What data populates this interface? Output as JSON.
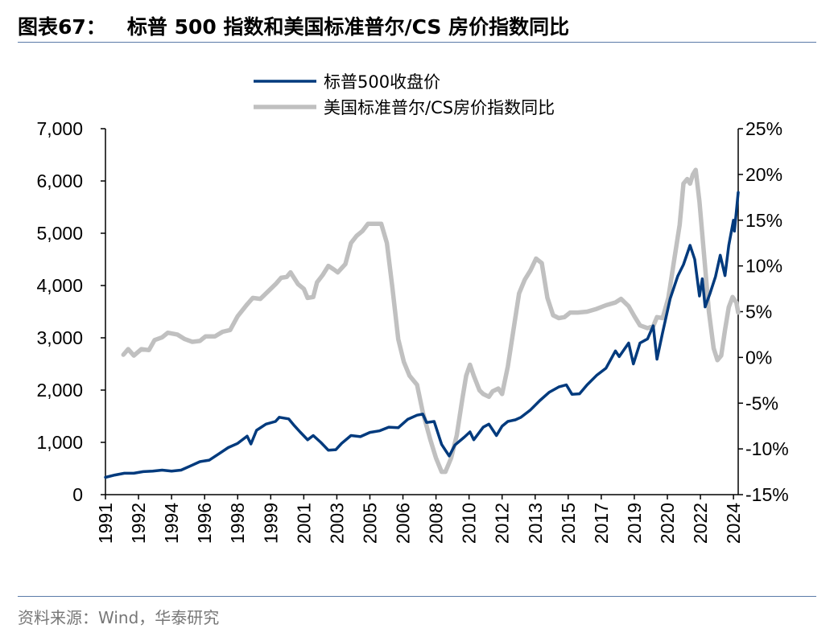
{
  "title": "图表67：   标普 500 指数和美国标准普尔/CS 房价指数同比",
  "source": "资料来源：Wind，华泰研究",
  "chart_data": {
    "type": "line",
    "title": "",
    "xlim": [
      1991,
      2024.5
    ],
    "x_tick_labels": [
      "1991",
      "1992",
      "1994",
      "1996",
      "1998",
      "1999",
      "2001",
      "2003",
      "2005",
      "2006",
      "2008",
      "2010",
      "2012",
      "2013",
      "2015",
      "2017",
      "2019",
      "2020",
      "2022",
      "2024"
    ],
    "x_tick_values": [
      1991,
      1992.75,
      1994.5,
      1996.25,
      1998,
      1999.75,
      2001.5,
      2003.25,
      2005,
      2006.75,
      2008.5,
      2010.25,
      2012,
      2013.75,
      2015.5,
      2017.25,
      2019,
      2020.75,
      2022.5,
      2024.25
    ],
    "y_left": {
      "lim": [
        0,
        7000
      ],
      "tick_labels": [
        "0",
        "1,000",
        "2,000",
        "3,000",
        "4,000",
        "5,000",
        "6,000",
        "7,000"
      ],
      "tick_values": [
        0,
        1000,
        2000,
        3000,
        4000,
        5000,
        6000,
        7000
      ]
    },
    "y_right": {
      "lim": [
        -15,
        25
      ],
      "tick_labels": [
        "-15%",
        "-10%",
        "-5%",
        "0%",
        "5%",
        "10%",
        "15%",
        "20%",
        "25%"
      ],
      "tick_values": [
        -15,
        -10,
        -5,
        0,
        5,
        10,
        15,
        20,
        25
      ]
    },
    "legend_placement": "top-center",
    "grid": false,
    "series": [
      {
        "name": "标普500收盘价",
        "axis": "left",
        "color": "#003a7d",
        "points": [
          [
            1991.0,
            330
          ],
          [
            1991.5,
            375
          ],
          [
            1992.0,
            410
          ],
          [
            1992.5,
            410
          ],
          [
            1993.0,
            440
          ],
          [
            1993.5,
            450
          ],
          [
            1994.0,
            470
          ],
          [
            1994.5,
            450
          ],
          [
            1995.0,
            470
          ],
          [
            1995.5,
            550
          ],
          [
            1996.0,
            630
          ],
          [
            1996.5,
            660
          ],
          [
            1997.0,
            780
          ],
          [
            1997.5,
            900
          ],
          [
            1998.0,
            980
          ],
          [
            1998.5,
            1120
          ],
          [
            1998.7,
            970
          ],
          [
            1999.0,
            1230
          ],
          [
            1999.5,
            1350
          ],
          [
            2000.0,
            1400
          ],
          [
            2000.2,
            1480
          ],
          [
            2000.7,
            1450
          ],
          [
            2001.0,
            1320
          ],
          [
            2001.3,
            1200
          ],
          [
            2001.7,
            1050
          ],
          [
            2002.0,
            1130
          ],
          [
            2002.4,
            1000
          ],
          [
            2002.8,
            850
          ],
          [
            2003.2,
            860
          ],
          [
            2003.5,
            980
          ],
          [
            2004.0,
            1130
          ],
          [
            2004.5,
            1110
          ],
          [
            2005.0,
            1190
          ],
          [
            2005.5,
            1220
          ],
          [
            2006.0,
            1290
          ],
          [
            2006.5,
            1280
          ],
          [
            2007.0,
            1440
          ],
          [
            2007.5,
            1520
          ],
          [
            2007.8,
            1540
          ],
          [
            2008.0,
            1380
          ],
          [
            2008.4,
            1400
          ],
          [
            2008.8,
            960
          ],
          [
            2009.0,
            850
          ],
          [
            2009.2,
            740
          ],
          [
            2009.5,
            950
          ],
          [
            2010.0,
            1100
          ],
          [
            2010.3,
            1200
          ],
          [
            2010.5,
            1050
          ],
          [
            2011.0,
            1290
          ],
          [
            2011.3,
            1350
          ],
          [
            2011.7,
            1130
          ],
          [
            2012.0,
            1310
          ],
          [
            2012.3,
            1400
          ],
          [
            2012.7,
            1430
          ],
          [
            2013.0,
            1480
          ],
          [
            2013.5,
            1620
          ],
          [
            2014.0,
            1800
          ],
          [
            2014.5,
            1960
          ],
          [
            2015.0,
            2060
          ],
          [
            2015.4,
            2100
          ],
          [
            2015.7,
            1920
          ],
          [
            2016.1,
            1930
          ],
          [
            2016.5,
            2100
          ],
          [
            2017.0,
            2280
          ],
          [
            2017.5,
            2420
          ],
          [
            2018.0,
            2750
          ],
          [
            2018.2,
            2640
          ],
          [
            2018.7,
            2900
          ],
          [
            2018.95,
            2500
          ],
          [
            2019.3,
            2900
          ],
          [
            2019.7,
            2980
          ],
          [
            2020.0,
            3230
          ],
          [
            2020.2,
            2590
          ],
          [
            2020.5,
            3100
          ],
          [
            2020.9,
            3750
          ],
          [
            2021.3,
            4180
          ],
          [
            2021.6,
            4400
          ],
          [
            2021.95,
            4770
          ],
          [
            2022.2,
            4500
          ],
          [
            2022.45,
            3800
          ],
          [
            2022.6,
            4130
          ],
          [
            2022.75,
            3590
          ],
          [
            2023.0,
            3840
          ],
          [
            2023.3,
            4170
          ],
          [
            2023.55,
            4580
          ],
          [
            2023.8,
            4190
          ],
          [
            2024.0,
            4770
          ],
          [
            2024.25,
            5250
          ],
          [
            2024.3,
            5040
          ],
          [
            2024.5,
            5780
          ]
        ]
      },
      {
        "name": "美国标准普尔/CS房价指数同比",
        "axis": "right",
        "color": "#c0c0c0",
        "points": [
          [
            1991.95,
            0.3
          ],
          [
            1992.2,
            0.9
          ],
          [
            1992.5,
            0.2
          ],
          [
            1992.9,
            0.9
          ],
          [
            1993.3,
            0.8
          ],
          [
            1993.6,
            1.9
          ],
          [
            1994.0,
            2.2
          ],
          [
            1994.3,
            2.7
          ],
          [
            1994.8,
            2.5
          ],
          [
            1995.2,
            2.0
          ],
          [
            1995.6,
            1.7
          ],
          [
            1996.0,
            1.8
          ],
          [
            1996.3,
            2.3
          ],
          [
            1996.8,
            2.3
          ],
          [
            1997.2,
            2.8
          ],
          [
            1997.6,
            3.0
          ],
          [
            1998.0,
            4.5
          ],
          [
            1998.5,
            5.8
          ],
          [
            1998.8,
            6.5
          ],
          [
            1999.2,
            6.4
          ],
          [
            1999.6,
            7.2
          ],
          [
            2000.0,
            8.0
          ],
          [
            2000.3,
            8.7
          ],
          [
            2000.6,
            8.8
          ],
          [
            2000.8,
            9.3
          ],
          [
            2001.2,
            8.0
          ],
          [
            2001.5,
            7.5
          ],
          [
            2001.7,
            6.5
          ],
          [
            2002.0,
            6.6
          ],
          [
            2002.2,
            8.2
          ],
          [
            2002.5,
            9.0
          ],
          [
            2002.8,
            10.0
          ],
          [
            2003.1,
            9.6
          ],
          [
            2003.3,
            9.3
          ],
          [
            2003.7,
            10.2
          ],
          [
            2004.0,
            12.5
          ],
          [
            2004.3,
            13.3
          ],
          [
            2004.6,
            13.8
          ],
          [
            2004.9,
            14.6
          ],
          [
            2005.3,
            14.6
          ],
          [
            2005.6,
            14.6
          ],
          [
            2005.9,
            12.5
          ],
          [
            2006.2,
            7.5
          ],
          [
            2006.5,
            2.0
          ],
          [
            2006.8,
            -0.5
          ],
          [
            2007.1,
            -2.0
          ],
          [
            2007.5,
            -3.0
          ],
          [
            2007.8,
            -6.0
          ],
          [
            2008.2,
            -9.0
          ],
          [
            2008.5,
            -11.0
          ],
          [
            2008.8,
            -12.5
          ],
          [
            2009.0,
            -12.5
          ],
          [
            2009.3,
            -11.0
          ],
          [
            2009.6,
            -8.5
          ],
          [
            2009.9,
            -4.5
          ],
          [
            2010.1,
            -2.0
          ],
          [
            2010.3,
            -0.8
          ],
          [
            2010.5,
            -2.0
          ],
          [
            2010.8,
            -3.6
          ],
          [
            2011.0,
            -4.0
          ],
          [
            2011.3,
            -4.3
          ],
          [
            2011.5,
            -3.7
          ],
          [
            2011.8,
            -3.4
          ],
          [
            2012.0,
            -4.0
          ],
          [
            2012.3,
            -1.0
          ],
          [
            2012.6,
            3.0
          ],
          [
            2012.9,
            7.0
          ],
          [
            2013.2,
            8.5
          ],
          [
            2013.5,
            9.5
          ],
          [
            2013.8,
            10.8
          ],
          [
            2014.1,
            10.3
          ],
          [
            2014.4,
            6.5
          ],
          [
            2014.7,
            4.6
          ],
          [
            2015.0,
            4.3
          ],
          [
            2015.3,
            4.4
          ],
          [
            2015.6,
            4.9
          ],
          [
            2016.0,
            4.9
          ],
          [
            2016.5,
            5.0
          ],
          [
            2017.0,
            5.3
          ],
          [
            2017.5,
            5.7
          ],
          [
            2018.0,
            6.0
          ],
          [
            2018.3,
            6.4
          ],
          [
            2018.7,
            5.6
          ],
          [
            2019.0,
            4.5
          ],
          [
            2019.3,
            3.5
          ],
          [
            2019.7,
            3.2
          ],
          [
            2020.0,
            3.4
          ],
          [
            2020.2,
            4.4
          ],
          [
            2020.5,
            4.3
          ],
          [
            2020.8,
            6.5
          ],
          [
            2021.1,
            10.5
          ],
          [
            2021.4,
            14.5
          ],
          [
            2021.6,
            19.0
          ],
          [
            2021.8,
            19.5
          ],
          [
            2021.95,
            19.0
          ],
          [
            2022.1,
            20.0
          ],
          [
            2022.25,
            20.5
          ],
          [
            2022.45,
            17.0
          ],
          [
            2022.7,
            11.0
          ],
          [
            2022.95,
            5.0
          ],
          [
            2023.2,
            1.0
          ],
          [
            2023.4,
            -0.3
          ],
          [
            2023.6,
            0.2
          ],
          [
            2023.8,
            3.0
          ],
          [
            2024.0,
            5.5
          ],
          [
            2024.2,
            6.6
          ],
          [
            2024.4,
            6.0
          ],
          [
            2024.5,
            4.9
          ]
        ]
      }
    ]
  }
}
